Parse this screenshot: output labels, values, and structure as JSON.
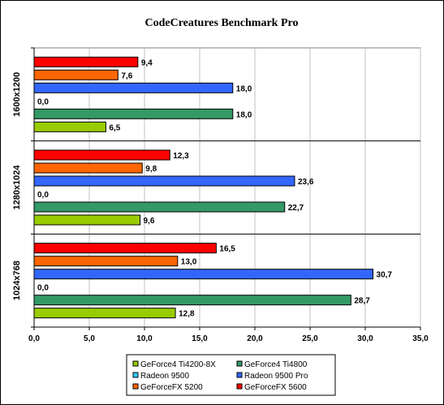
{
  "chart_data": {
    "type": "bar",
    "orientation": "horizontal",
    "title": "CodeCreatures Benchmark Pro",
    "categories": [
      "1600x1200",
      "1280x1024",
      "1024x768"
    ],
    "series": [
      {
        "name": "GeForce4 Ti4200-8X",
        "color": "#99cc00",
        "values": [
          6.5,
          9.6,
          12.8
        ]
      },
      {
        "name": "GeForce4 Ti4800",
        "color": "#339966",
        "values": [
          18.0,
          22.7,
          28.7
        ]
      },
      {
        "name": "Radeon 9500",
        "color": "#33ccff",
        "values": [
          0.0,
          0.0,
          0.0
        ]
      },
      {
        "name": "Radeon 9500 Pro",
        "color": "#3366ff",
        "values": [
          18.0,
          23.6,
          30.7
        ]
      },
      {
        "name": "GeForceFX 5200",
        "color": "#ff6600",
        "values": [
          7.6,
          9.8,
          13.0
        ]
      },
      {
        "name": "GeForceFX 5600",
        "color": "#ff0000",
        "values": [
          9.4,
          12.3,
          16.5
        ]
      }
    ],
    "value_labels": {
      "1600x1200": [
        "6,5",
        "18,0",
        "0,0",
        "18,0",
        "7,6",
        "9,4"
      ],
      "1280x1024": [
        "9,6",
        "22,7",
        "0,0",
        "23,6",
        "9,8",
        "12,3"
      ],
      "1024x768": [
        "12,8",
        "28,7",
        "0,0",
        "30,7",
        "13,0",
        "16,5"
      ]
    },
    "xlim": [
      0,
      35
    ],
    "xticks": [
      "0,0",
      "5,0",
      "10,0",
      "15,0",
      "20,0",
      "25,0",
      "30,0",
      "35,0"
    ],
    "grid": true,
    "legend_position": "bottom"
  }
}
